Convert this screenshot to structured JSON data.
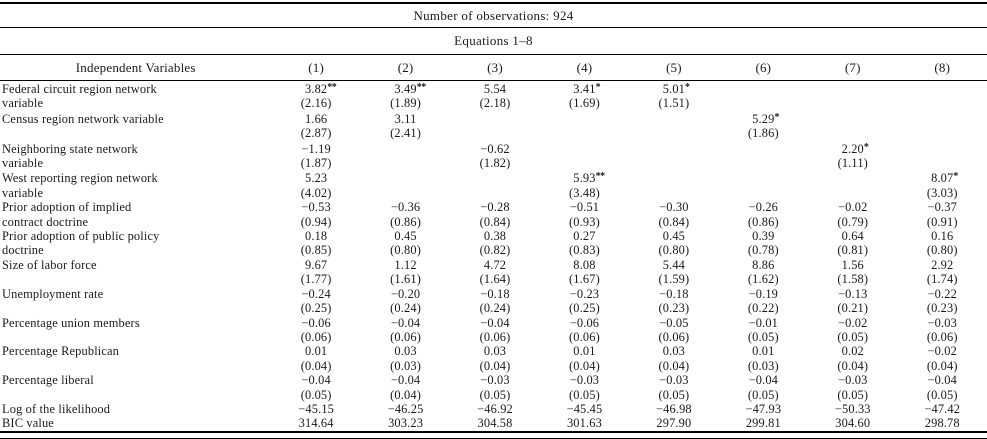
{
  "table": {
    "caption_top": "Number of observations: 924",
    "caption_equations": "Equations 1–8",
    "columns": [
      "Independent Variables",
      "(1)",
      "(2)",
      "(3)",
      "(4)",
      "(5)",
      "(6)",
      "(7)",
      "(8)"
    ],
    "significance_note_symbols": [
      "*",
      "**"
    ],
    "variables": [
      {
        "label_line1": "Federal circuit region network",
        "label_line2": "variable",
        "coefs": [
          "3.82**",
          "3.49**",
          "5.54",
          "3.41*",
          "5.01*",
          "",
          "",
          ""
        ],
        "ses": [
          "(2.16)",
          "(1.89)",
          "(2.18)",
          "(1.69)",
          "(1.51)",
          "",
          "",
          ""
        ]
      },
      {
        "label_line1": "Census region network variable",
        "label_line2": "",
        "coefs": [
          "1.66",
          "3.11",
          "",
          "",
          "",
          "5.29*",
          "",
          ""
        ],
        "ses": [
          "(2.87)",
          "(2.41)",
          "",
          "",
          "",
          "(1.86)",
          "",
          ""
        ]
      },
      {
        "label_line1": "Neighboring state network",
        "label_line2": "variable",
        "coefs": [
          "−1.19",
          "",
          "−0.62",
          "",
          "",
          "",
          "2.20*",
          ""
        ],
        "ses": [
          "(1.87)",
          "",
          "(1.82)",
          "",
          "",
          "",
          "(1.11)",
          ""
        ]
      },
      {
        "label_line1": "West reporting region network",
        "label_line2": "variable",
        "coefs": [
          "5.23",
          "",
          "",
          "5.93**",
          "",
          "",
          "",
          "8.07*"
        ],
        "ses": [
          "(4.02)",
          "",
          "",
          "(3.48)",
          "",
          "",
          "",
          "(3.03)"
        ]
      },
      {
        "label_line1": "Prior adoption of implied",
        "label_line2": "contract doctrine",
        "coefs": [
          "−0.53",
          "−0.36",
          "−0.28",
          "−0.51",
          "−0.30",
          "−0.26",
          "−0.02",
          "−0.37"
        ],
        "ses": [
          "(0.94)",
          "(0.86)",
          "(0.84)",
          "(0.93)",
          "(0.84)",
          "(0.86)",
          "(0.79)",
          "(0.91)"
        ]
      },
      {
        "label_line1": "Prior adoption of public policy",
        "label_line2": "doctrine",
        "coefs": [
          "0.18",
          "0.45",
          "0.38",
          "0.27",
          "0.45",
          "0.39",
          "0.64",
          "0.16"
        ],
        "ses": [
          "(0.85)",
          "(0.80)",
          "(0.82)",
          "(0.83)",
          "(0.80)",
          "(0.78)",
          "(0.81)",
          "(0.80)"
        ]
      },
      {
        "label_line1": "Size of labor force",
        "label_line2": "",
        "coefs": [
          "9.67",
          "1.12",
          "4.72",
          "8.08",
          "5.44",
          "8.86",
          "1.56",
          "2.92"
        ],
        "ses": [
          "(1.77)",
          "(1.61)",
          "(1.64)",
          "(1.67)",
          "(1.59)",
          "(1.62)",
          "(1.58)",
          "(1.74)"
        ]
      },
      {
        "label_line1": "Unemployment rate",
        "label_line2": "",
        "coefs": [
          "−0.24",
          "−0.20",
          "−0.18",
          "−0.23",
          "−0.18",
          "−0.19",
          "−0.13",
          "−0.22"
        ],
        "ses": [
          "(0.25)",
          "(0.24)",
          "(0.24)",
          "(0.25)",
          "(0.23)",
          "(0.22)",
          "(0.21)",
          "(0.23)"
        ]
      },
      {
        "label_line1": "Percentage union members",
        "label_line2": "",
        "coefs": [
          "−0.06",
          "−0.04",
          "−0.04",
          "−0.06",
          "−0.05",
          "−0.01",
          "−0.02",
          "−0.03"
        ],
        "ses": [
          "(0.06)",
          "(0.06)",
          "(0.06)",
          "(0.06)",
          "(0.06)",
          "(0.05)",
          "(0.05)",
          "(0.06)"
        ]
      },
      {
        "label_line1": "Percentage Republican",
        "label_line2": "",
        "coefs": [
          "0.01",
          "0.03",
          "0.03",
          "0.01",
          "0.03",
          "0.01",
          "0.02",
          "−0.02"
        ],
        "ses": [
          "(0.04)",
          "(0.03)",
          "(0.04)",
          "(0.04)",
          "(0.04)",
          "(0.03)",
          "(0.04)",
          "(0.04)"
        ]
      },
      {
        "label_line1": "Percentage liberal",
        "label_line2": "",
        "coefs": [
          "−0.04",
          "−0.04",
          "−0.03",
          "−0.03",
          "−0.03",
          "−0.04",
          "−0.03",
          "−0.04"
        ],
        "ses": [
          "(0.05)",
          "(0.04)",
          "(0.05)",
          "(0.05)",
          "(0.05)",
          "(0.05)",
          "(0.05)",
          "(0.05)"
        ]
      }
    ],
    "summary_rows": [
      {
        "label": "Log of the likelihood",
        "values": [
          "−45.15",
          "−46.25",
          "−46.92",
          "−45.45",
          "−46.98",
          "−47.93",
          "−50.33",
          "−47.42"
        ]
      },
      {
        "label": "BIC value",
        "values": [
          "314.64",
          "303.23",
          "304.58",
          "301.63",
          "297.90",
          "299.81",
          "304.60",
          "298.78"
        ]
      }
    ]
  }
}
